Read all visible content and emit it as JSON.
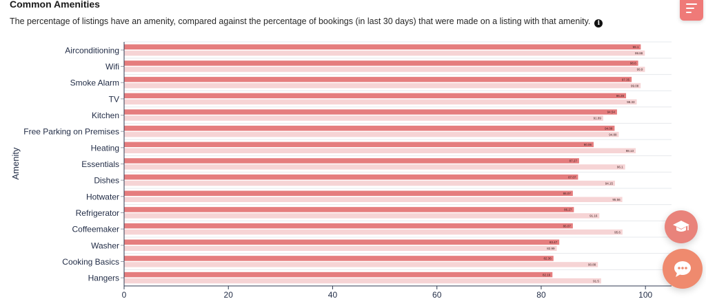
{
  "header": {
    "title": "Common Amenities",
    "subtitle": "The percentage of listings have an amenity, compared against the percentage of bookings (in last 30 days) that were made on a listing with that amenity.",
    "info_icon": "info-icon"
  },
  "colors": {
    "listings": "#e57d7e",
    "bookings": "#f6d4d5",
    "accent": "#ef7a78"
  },
  "chart_data": {
    "type": "bar",
    "orientation": "horizontal",
    "ylabel": "Amenity",
    "xlabel": "",
    "xlim": [
      0,
      105
    ],
    "xticks": [
      0,
      20,
      40,
      60,
      80,
      100
    ],
    "grid": true,
    "categories": [
      "Airconditioning",
      "Wifi",
      "Smoke Alarm",
      "TV",
      "Kitchen",
      "Free Parking on Premises",
      "Heating",
      "Essentials",
      "Dishes",
      "Hotwater",
      "Refrigerator",
      "Coffeemaker",
      "Washer",
      "Cooking Basics",
      "Hangers"
    ],
    "series": [
      {
        "values": [
          99.1,
          98.6,
          97.35,
          96.28,
          94.54,
          94.08,
          90.06,
          87.27,
          87.07,
          86.07,
          86.27,
          86.07,
          83.47,
          82.36,
          82.16
        ]
      },
      {
        "values": [
          99.88,
          99.9,
          99.08,
          98.33,
          91.89,
          94.88,
          98.13,
          96.1,
          94.15,
          95.56,
          91.16,
          95.6,
          82.99,
          90.88,
          91.5
        ]
      }
    ]
  }
}
